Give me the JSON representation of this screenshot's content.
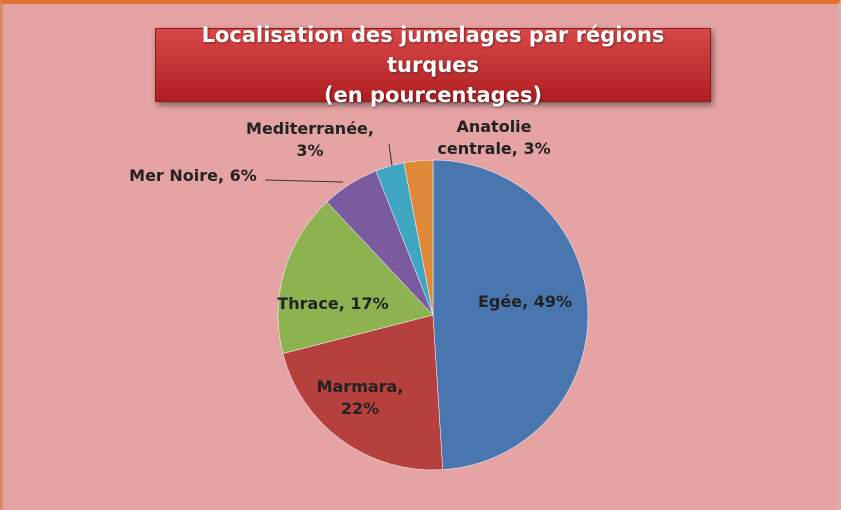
{
  "chart_data": {
    "type": "pie",
    "title": "Localisation des jumelages par régions turques\n(en pourcentages)",
    "categories": [
      "Egée",
      "Marmara",
      "Thrace",
      "Mer Noire",
      "Mediterranée",
      "Anatolie centrale"
    ],
    "values": [
      49,
      22,
      17,
      6,
      3,
      3
    ],
    "value_labels": [
      "49%",
      "22%",
      "17%",
      "6%",
      "3%",
      "3%"
    ],
    "colors": [
      "#4a76b0",
      "#b5403e",
      "#8db350",
      "#7b5b9f",
      "#3fa6c2",
      "#e0893a"
    ]
  }
}
